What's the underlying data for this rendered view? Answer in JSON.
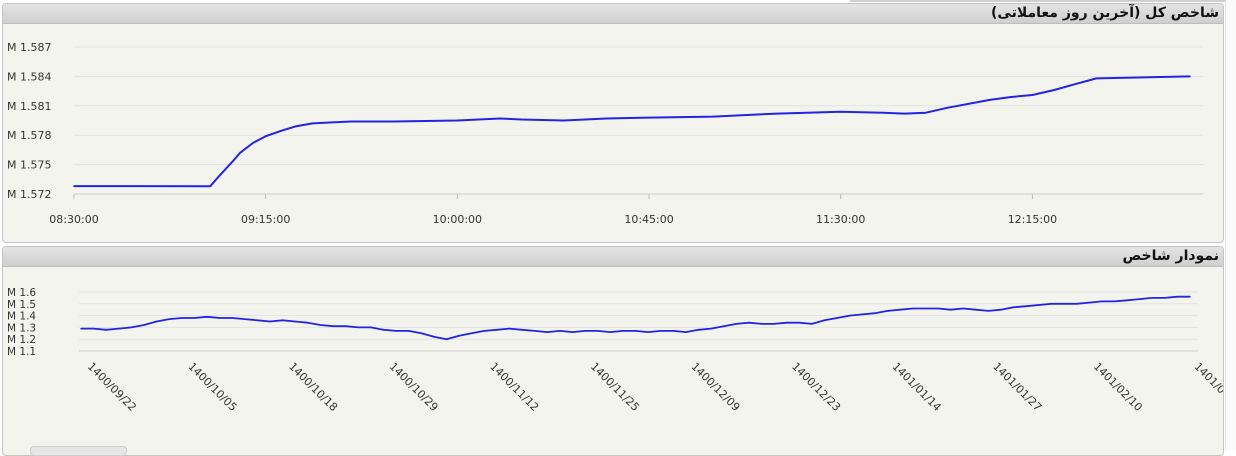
{
  "panels": {
    "intraday": {
      "title": "شاخص کل (آخرین روز معاملاتی)"
    },
    "history": {
      "title": "نمودار شاخص"
    }
  },
  "chart_data": [
    {
      "type": "line",
      "title": "شاخص کل (آخرین روز معاملاتی)",
      "xlabel": "",
      "ylabel": "",
      "x_unit": "time",
      "x_ticks": [
        "08:30:00",
        "09:15:00",
        "10:00:00",
        "10:45:00",
        "11:30:00",
        "12:15:00"
      ],
      "y_ticks": [
        "M 1.572",
        "M 1.575",
        "M 1.578",
        "M 1.581",
        "M 1.584",
        "M 1.587"
      ],
      "ylim": [
        1.572,
        1.587
      ],
      "xlim": [
        "08:30:00",
        "12:52:00"
      ],
      "grid": true,
      "series": [
        {
          "color": "#2323e6",
          "x": [
            "08:30:00",
            "09:02:00",
            "09:04:00",
            "09:07:00",
            "09:09:00",
            "09:12:00",
            "09:15:00",
            "09:19:00",
            "09:22:00",
            "09:26:00",
            "09:30:00",
            "09:35:00",
            "09:45:00",
            "10:00:00",
            "10:10:00",
            "10:15:00",
            "10:25:00",
            "10:35:00",
            "10:45:00",
            "11:00:00",
            "11:15:00",
            "11:30:00",
            "11:40:00",
            "11:45:00",
            "11:50:00",
            "11:55:00",
            "12:05:00",
            "12:10:00",
            "12:15:00",
            "12:20:00",
            "12:25:00",
            "12:30:00",
            "12:52:00"
          ],
          "y": [
            1.5728,
            1.5728,
            1.5738,
            1.5752,
            1.5762,
            1.5772,
            1.5779,
            1.5785,
            1.5789,
            1.5792,
            1.5793,
            1.5794,
            1.5794,
            1.5795,
            1.5797,
            1.5796,
            1.5795,
            1.5797,
            1.5798,
            1.5799,
            1.5802,
            1.5804,
            1.5803,
            1.5802,
            1.5803,
            1.5808,
            1.5816,
            1.5819,
            1.5821,
            1.5826,
            1.5832,
            1.5838,
            1.584
          ]
        }
      ]
    },
    {
      "type": "line",
      "title": "نمودار شاخص",
      "xlabel": "",
      "ylabel": "",
      "x_unit": "date",
      "x_ticks": [
        "1400/09/22",
        "1400/10/05",
        "1400/10/18",
        "1400/10/29",
        "1400/11/12",
        "1400/11/25",
        "1400/12/09",
        "1400/12/23",
        "1401/01/14",
        "1401/01/27",
        "1401/02/10",
        "1401/0"
      ],
      "y_ticks": [
        "M 1.1",
        "M 1.2",
        "M 1.3",
        "M 1.4",
        "M 1.5",
        "M 1.6"
      ],
      "ylim": [
        1.1,
        1.6
      ],
      "grid": true,
      "series": [
        {
          "color": "#2323e6",
          "y": [
            1.29,
            1.29,
            1.28,
            1.29,
            1.3,
            1.32,
            1.35,
            1.37,
            1.38,
            1.38,
            1.39,
            1.38,
            1.38,
            1.37,
            1.36,
            1.35,
            1.36,
            1.35,
            1.34,
            1.32,
            1.31,
            1.31,
            1.3,
            1.3,
            1.28,
            1.27,
            1.27,
            1.25,
            1.22,
            1.2,
            1.23,
            1.25,
            1.27,
            1.28,
            1.29,
            1.28,
            1.27,
            1.26,
            1.27,
            1.26,
            1.27,
            1.27,
            1.26,
            1.27,
            1.27,
            1.26,
            1.27,
            1.27,
            1.26,
            1.28,
            1.29,
            1.31,
            1.33,
            1.34,
            1.33,
            1.33,
            1.34,
            1.34,
            1.33,
            1.36,
            1.38,
            1.4,
            1.41,
            1.42,
            1.44,
            1.45,
            1.46,
            1.46,
            1.46,
            1.45,
            1.46,
            1.45,
            1.44,
            1.45,
            1.47,
            1.48,
            1.49,
            1.5,
            1.5,
            1.5,
            1.51,
            1.52,
            1.52,
            1.53,
            1.54,
            1.55,
            1.55,
            1.56,
            1.56
          ]
        }
      ]
    }
  ]
}
